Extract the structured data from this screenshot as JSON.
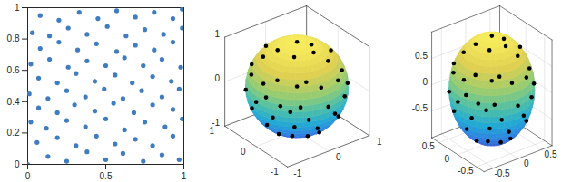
{
  "chart_data": [
    {
      "type": "scatter",
      "color": "#3f7cc0",
      "grid": false,
      "xlim": [
        0,
        1
      ],
      "ylim": [
        0,
        1
      ],
      "xticks": [
        0,
        0.5,
        1
      ],
      "yticks": [
        0,
        0.2,
        0.4,
        0.6,
        0.8,
        1
      ],
      "x": [
        0.0,
        0.13,
        0.25,
        0.38,
        0.5,
        0.61,
        0.74,
        0.86,
        0.97,
        0.06,
        0.19,
        0.31,
        0.44,
        0.56,
        0.69,
        0.8,
        0.93,
        0.02,
        0.12,
        0.25,
        0.37,
        0.5,
        0.62,
        0.75,
        0.88,
        0.99,
        0.07,
        0.19,
        0.3,
        0.43,
        0.55,
        0.68,
        0.8,
        0.93,
        0.01,
        0.13,
        0.25,
        0.37,
        0.49,
        0.61,
        0.73,
        0.86,
        0.97,
        0.07,
        0.19,
        0.31,
        0.43,
        0.56,
        0.67,
        0.8,
        0.92,
        0.02,
        0.14,
        0.26,
        0.38,
        0.5,
        0.62,
        0.74,
        0.86,
        0.98,
        0.08,
        0.2,
        0.32,
        0.44,
        0.57,
        0.69,
        0.81,
        0.93,
        0.03,
        0.14,
        0.26,
        0.38,
        0.51,
        0.63,
        0.75,
        0.87,
        0.99,
        0.08,
        0.2,
        0.33,
        0.45,
        0.57,
        0.69,
        0.81,
        0.93,
        0.99
      ],
      "values": [
        0.0,
        0.05,
        0.02,
        0.08,
        0.03,
        0.07,
        0.02,
        0.06,
        0.03,
        0.14,
        0.17,
        0.12,
        0.18,
        0.13,
        0.16,
        0.12,
        0.18,
        0.27,
        0.23,
        0.28,
        0.24,
        0.29,
        0.22,
        0.27,
        0.24,
        0.29,
        0.36,
        0.33,
        0.38,
        0.34,
        0.39,
        0.33,
        0.38,
        0.35,
        0.45,
        0.42,
        0.47,
        0.43,
        0.48,
        0.42,
        0.47,
        0.43,
        0.48,
        0.55,
        0.52,
        0.58,
        0.53,
        0.57,
        0.52,
        0.56,
        0.53,
        0.64,
        0.67,
        0.62,
        0.66,
        0.63,
        0.68,
        0.63,
        0.67,
        0.62,
        0.74,
        0.78,
        0.73,
        0.77,
        0.72,
        0.76,
        0.73,
        0.78,
        0.84,
        0.82,
        0.87,
        0.83,
        0.88,
        0.82,
        0.86,
        0.83,
        0.87,
        0.95,
        0.92,
        0.97,
        0.93,
        0.98,
        0.94,
        0.97,
        0.93,
        0.99
      ]
    },
    {
      "type": "scatter3d",
      "color": "#000000",
      "grid": true,
      "radii": [
        1,
        1,
        1
      ],
      "xlim": [
        -1,
        1
      ],
      "ylim": [
        -1,
        1
      ],
      "zlim": [
        -1,
        1
      ],
      "xticks": [
        -1,
        0,
        1
      ],
      "yticks": [
        -1,
        0,
        1
      ],
      "zticks": [
        -1,
        0,
        1
      ],
      "x": [
        -0.53,
        0,
        -1,
        0,
        -0.71,
        0.5,
        -0.87,
        0.3,
        -0.6,
        0.6,
        -0.3,
        -0.5,
        0,
        -0.4,
        -0.9,
        -0.9,
        -0.1,
        0.2,
        -0.95,
        -0.3,
        0.1,
        -0.4,
        -0.75,
        -0.35,
        0.35,
        -0.85,
        -0.2,
        -0.6,
        -0.6,
        -0.55,
        -0.83,
        0.7,
        -0.65,
        0.6,
        0.2,
        -0.15,
        -0.85,
        0.4,
        -0.95
      ],
      "y": [
        -0.69,
        -1,
        0,
        0,
        -0.71,
        -0.87,
        0.5,
        -0.6,
        0.3,
        -0.3,
        0.6,
        -0.5,
        -0.71,
        -0.9,
        -0.4,
        -0.1,
        -0.9,
        -0.95,
        0.2,
        -0.3,
        -0.4,
        0.1,
        -0.35,
        -0.75,
        -0.85,
        0.35,
        -0.6,
        -0.2,
        -0.7,
        -0.83,
        -0.55,
        -0.7,
        0.6,
        -0.65,
        -0.2,
        -0.85,
        -0.15,
        -0.8,
        -0.25
      ],
      "z": [
        0.5,
        0,
        0,
        1,
        0,
        0,
        0,
        0.74,
        0.74,
        0.74,
        0.74,
        -0.71,
        -0.71,
        -0.2,
        -0.2,
        0.42,
        0.42,
        -0.25,
        -0.25,
        0.9,
        0.91,
        0.91,
        0.56,
        0.56,
        0.4,
        0.4,
        -0.77,
        -0.77,
        -0.38,
        0.1,
        0.1,
        0.15,
        0.45,
        0.45,
        0.96,
        -0.5,
        -0.5,
        -0.45,
        0.2
      ]
    },
    {
      "type": "scatter3d",
      "color": "#000000",
      "grid": true,
      "radii": [
        0.7,
        0.7,
        1
      ],
      "xlim": [
        -0.7,
        0.7
      ],
      "ylim": [
        -0.7,
        0.7
      ],
      "zlim": [
        -1,
        1
      ],
      "xticks": [
        -0.5,
        0,
        0.5
      ],
      "yticks": [
        -0.5,
        0,
        0.5
      ],
      "zticks": [
        -0.5,
        0,
        0.5
      ],
      "x": [
        -0.37,
        0,
        -0.7,
        0,
        -0.5,
        0.35,
        -0.61,
        0.21,
        -0.42,
        0.42,
        -0.35,
        0,
        -0.28,
        -0.63,
        -0.63,
        -0.07,
        0.14,
        -0.67,
        -0.21,
        0.07,
        -0.28,
        -0.53,
        -0.25,
        0.25,
        -0.6,
        -0.14,
        -0.42,
        -0.42,
        -0.39,
        -0.58,
        0.49,
        -0.46,
        0.42,
        0.14,
        -0.11,
        -0.6,
        0.28,
        -0.67
      ],
      "y": [
        -0.48,
        -0.7,
        0,
        0,
        -0.5,
        -0.61,
        0.35,
        -0.42,
        0.21,
        -0.21,
        -0.35,
        -0.5,
        -0.63,
        -0.28,
        -0.07,
        -0.63,
        -0.67,
        0.14,
        -0.21,
        -0.28,
        0.07,
        -0.25,
        -0.53,
        -0.6,
        0.25,
        -0.42,
        -0.14,
        -0.49,
        -0.58,
        -0.39,
        -0.49,
        0.42,
        -0.46,
        -0.14,
        -0.6,
        -0.11,
        -0.56,
        -0.18
      ],
      "z": [
        0.5,
        0,
        0,
        1,
        0,
        0,
        0,
        0.74,
        0.74,
        0.74,
        -0.71,
        -0.71,
        -0.2,
        -0.2,
        0.42,
        0.42,
        -0.25,
        -0.25,
        0.9,
        0.91,
        0.91,
        0.56,
        0.56,
        0.4,
        0.4,
        -0.77,
        -0.77,
        -0.38,
        0.1,
        0.1,
        0.15,
        0.45,
        0.45,
        0.96,
        -0.5,
        -0.5,
        -0.45,
        0.2
      ]
    }
  ]
}
